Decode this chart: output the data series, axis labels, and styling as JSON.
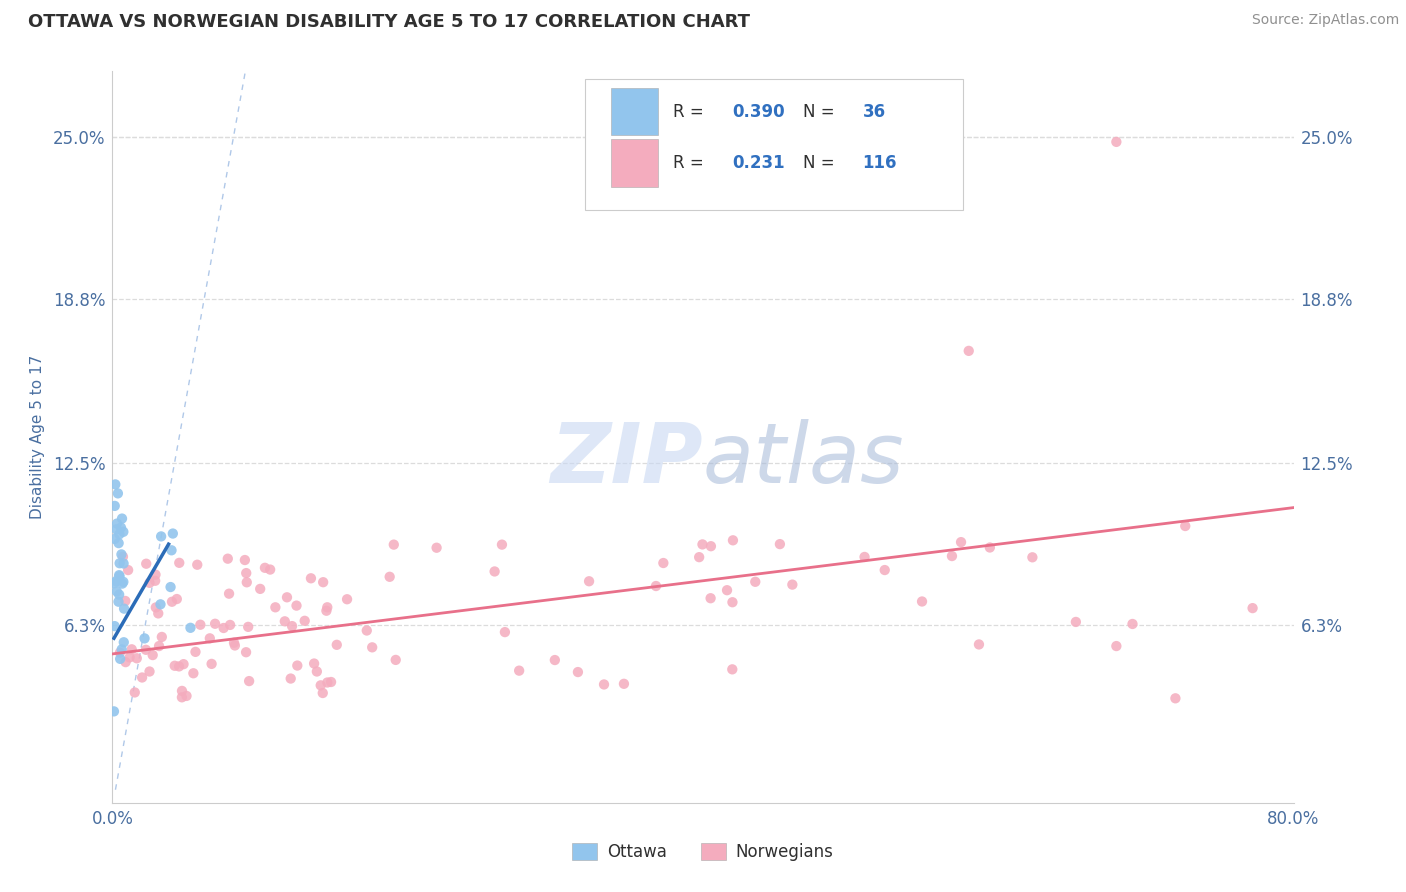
{
  "title": "OTTAWA VS NORWEGIAN DISABILITY AGE 5 TO 17 CORRELATION CHART",
  "source_text": "Source: ZipAtlas.com",
  "ylabel": "Disability Age 5 to 17",
  "xlim": [
    0.0,
    0.8
  ],
  "ylim": [
    -0.005,
    0.275
  ],
  "ytick_vals": [
    0.063,
    0.125,
    0.188,
    0.25
  ],
  "ytick_labels": [
    "6.3%",
    "12.5%",
    "18.8%",
    "25.0%"
  ],
  "xtick_vals": [
    0.0,
    0.8
  ],
  "xtick_labels": [
    "0.0%",
    "80.0%"
  ],
  "legend_R1": "0.390",
  "legend_N1": "36",
  "legend_R2": "0.231",
  "legend_N2": "116",
  "ottawa_color": "#92C5ED",
  "norwegian_color": "#F4ACBE",
  "trend_ottawa_color": "#2B6CB8",
  "trend_norwegian_color": "#E8708A",
  "ref_line_color": "#A8C0E0",
  "grid_color": "#DCDCDC",
  "watermark_zip_color": "#C8D8F0",
  "watermark_atlas_color": "#A0B8D8",
  "background_color": "#FFFFFF"
}
